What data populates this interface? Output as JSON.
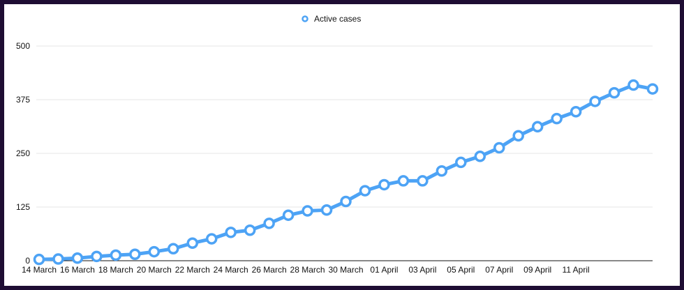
{
  "chart_data": {
    "type": "line",
    "title": "",
    "xlabel": "",
    "ylabel": "",
    "legend": {
      "position": "top-center"
    },
    "grid": true,
    "ylim": [
      0,
      500
    ],
    "y_ticks": [
      0,
      125,
      250,
      375,
      500
    ],
    "x_tick_labels": [
      "14 March",
      "16 March",
      "18 March",
      "20 March",
      "22 March",
      "24 March",
      "26 March",
      "28 March",
      "30 March",
      "01 April",
      "03 April",
      "05 April",
      "07 April",
      "09 April",
      "11 April"
    ],
    "x": [
      "14 March",
      "15 March",
      "16 March",
      "17 March",
      "18 March",
      "19 March",
      "20 March",
      "21 March",
      "22 March",
      "23 March",
      "24 March",
      "25 March",
      "26 March",
      "27 March",
      "28 March",
      "29 March",
      "30 March",
      "31 March",
      "01 April",
      "02 April",
      "03 April",
      "04 April",
      "05 April",
      "06 April",
      "07 April",
      "08 April",
      "09 April",
      "10 April",
      "11 April",
      "12 April",
      "13 April",
      "14 April",
      "15 April"
    ],
    "series": [
      {
        "name": "Active cases",
        "color": "#4da3f5",
        "values": [
          3,
          4,
          6,
          10,
          13,
          15,
          21,
          28,
          41,
          51,
          66,
          71,
          87,
          106,
          116,
          118,
          138,
          163,
          177,
          186,
          186,
          209,
          229,
          243,
          263,
          291,
          312,
          331,
          347,
          371,
          391,
          409,
          400
        ]
      }
    ]
  }
}
